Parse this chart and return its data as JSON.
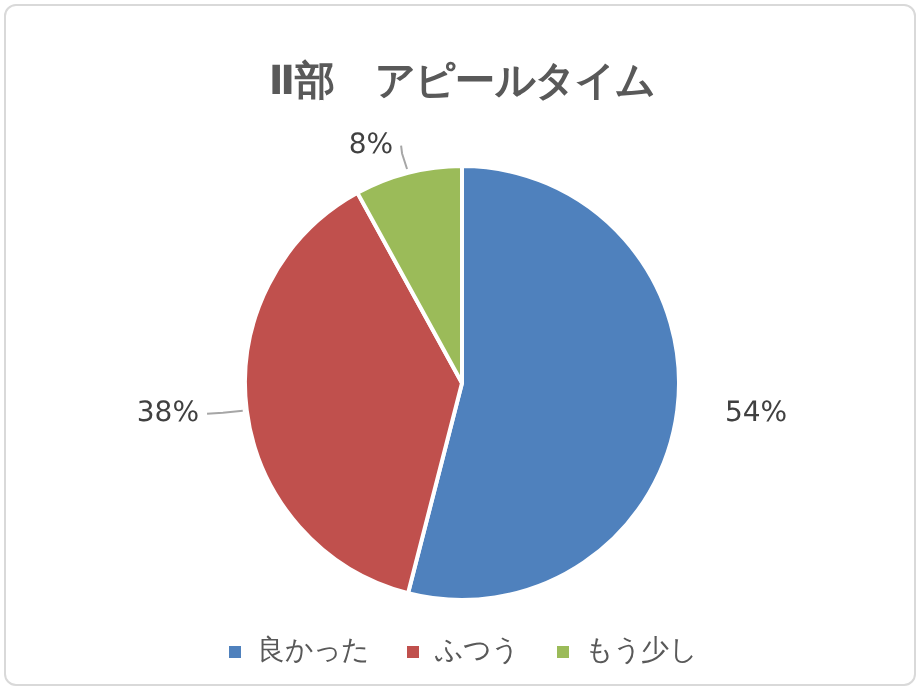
{
  "chart_data": {
    "type": "pie",
    "title": "Ⅱ部　アピールタイム",
    "categories": [
      "良かった",
      "ふつう",
      "もう少し"
    ],
    "values": [
      54,
      38,
      8
    ],
    "colors": [
      "#4f81bd",
      "#c0504d",
      "#9bbb59"
    ],
    "value_labels": [
      "54%",
      "38%",
      "8%"
    ],
    "legend": "bottom"
  }
}
